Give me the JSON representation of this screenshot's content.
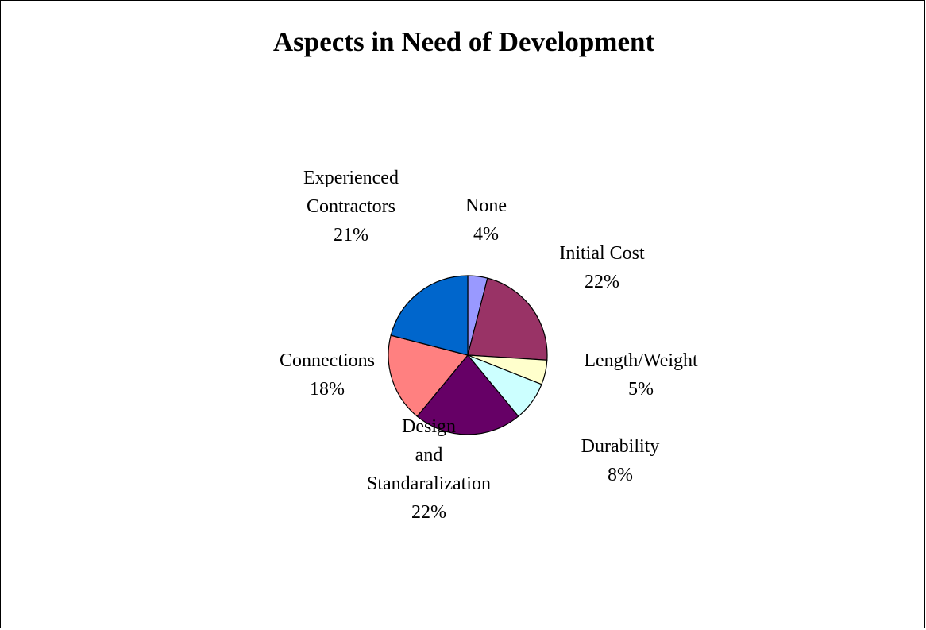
{
  "chart_data": {
    "type": "pie",
    "title": "Aspects in Need of Development",
    "slices": [
      {
        "label": [
          "None"
        ],
        "value": 4,
        "pct": "4%",
        "color": "#9999FF"
      },
      {
        "label": [
          "Initial Cost"
        ],
        "value": 22,
        "pct": "22%",
        "color": "#993366"
      },
      {
        "label": [
          "Length/Weight"
        ],
        "value": 5,
        "pct": "5%",
        "color": "#FFFFCC"
      },
      {
        "label": [
          "Durability"
        ],
        "value": 8,
        "pct": "8%",
        "color": "#CCFFFF"
      },
      {
        "label": [
          "Design",
          "and",
          "Standaralization"
        ],
        "value": 22,
        "pct": "22%",
        "color": "#660066"
      },
      {
        "label": [
          "Connections"
        ],
        "value": 18,
        "pct": "18%",
        "color": "#FF8080"
      },
      {
        "label": [
          "Experienced",
          "Contractors"
        ],
        "value": 21,
        "pct": "21%",
        "color": "#0066CC"
      }
    ]
  }
}
